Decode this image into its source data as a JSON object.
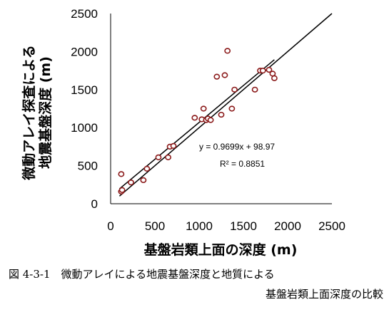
{
  "chart_data": {
    "type": "scatter",
    "xlabel": "基盤岩類上面の深度 (m)",
    "ylabel_line1": "微動アレイ探査による",
    "ylabel_line2": "地震基盤深度 (m)",
    "xlim": [
      0,
      2500
    ],
    "ylim": [
      0,
      2500
    ],
    "xticks": [
      "0",
      "500",
      "1000",
      "1500",
      "2000",
      "2500"
    ],
    "yticks": [
      "0",
      "500",
      "1000",
      "1500",
      "2000",
      "2500"
    ],
    "grid": false,
    "points": [
      {
        "x": 120,
        "y": 390
      },
      {
        "x": 120,
        "y": 160
      },
      {
        "x": 130,
        "y": 180
      },
      {
        "x": 230,
        "y": 280
      },
      {
        "x": 370,
        "y": 310
      },
      {
        "x": 410,
        "y": 460
      },
      {
        "x": 540,
        "y": 610
      },
      {
        "x": 650,
        "y": 610
      },
      {
        "x": 670,
        "y": 750
      },
      {
        "x": 710,
        "y": 760
      },
      {
        "x": 950,
        "y": 1130
      },
      {
        "x": 1030,
        "y": 1110
      },
      {
        "x": 1050,
        "y": 1250
      },
      {
        "x": 1080,
        "y": 1100
      },
      {
        "x": 1100,
        "y": 1120
      },
      {
        "x": 1130,
        "y": 1100
      },
      {
        "x": 1200,
        "y": 1670
      },
      {
        "x": 1250,
        "y": 1170
      },
      {
        "x": 1290,
        "y": 1690
      },
      {
        "x": 1320,
        "y": 2010
      },
      {
        "x": 1370,
        "y": 1250
      },
      {
        "x": 1400,
        "y": 1500
      },
      {
        "x": 1630,
        "y": 1500
      },
      {
        "x": 1690,
        "y": 1750
      },
      {
        "x": 1720,
        "y": 1750
      },
      {
        "x": 1790,
        "y": 1760
      },
      {
        "x": 1830,
        "y": 1710
      },
      {
        "x": 1850,
        "y": 1650
      }
    ],
    "regression": {
      "slope": 0.9699,
      "intercept": 98.97,
      "x_range": [
        100,
        1850
      ]
    },
    "identity_line": {
      "x_range": [
        100,
        2500
      ]
    },
    "equation_label": "y = 0.9699x + 98.97",
    "r2_label": "R² = 0.8851",
    "point_color": "#8B1A1A",
    "line_color": "#000000"
  },
  "caption": {
    "line1": "図 4-3-1　微動アレイによる地震基盤深度と地質による",
    "line2": "基盤岩類上面深度の比較"
  }
}
